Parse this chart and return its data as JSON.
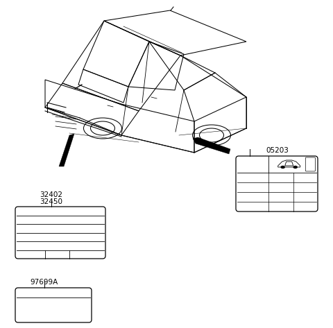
{
  "bg_color": "#ffffff",
  "line_color": "#000000",
  "car_label1": "32402",
  "car_label2": "32450",
  "label2": "05203",
  "label3": "97699A"
}
